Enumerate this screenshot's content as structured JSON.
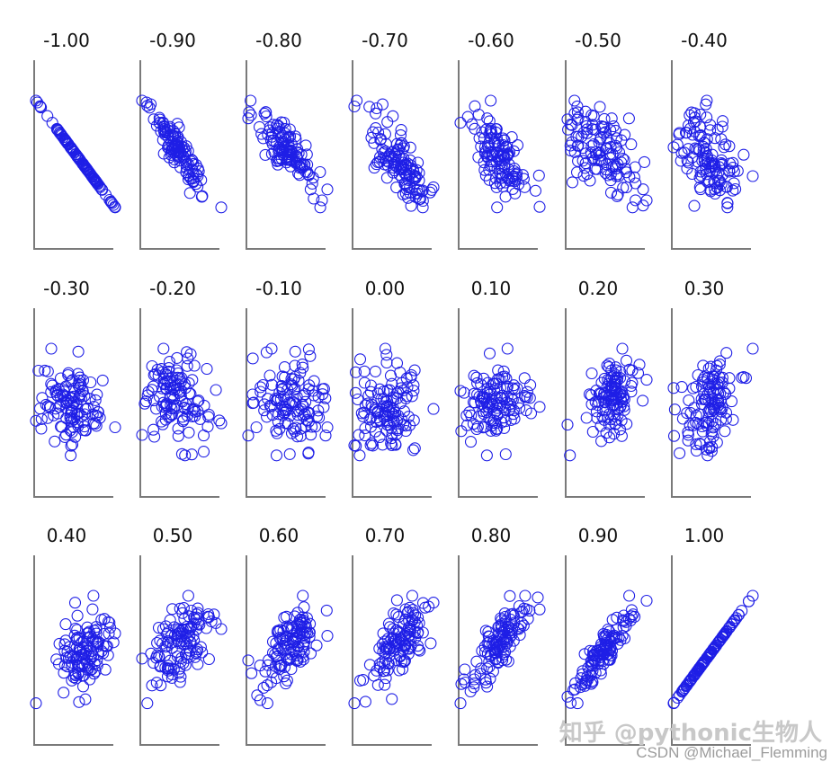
{
  "chart_data": {
    "type": "scatter",
    "layout": "grid",
    "rows": 3,
    "cols": 7,
    "points_per_panel": 120,
    "grid": false,
    "axes": "left-and-bottom lines, no ticks",
    "marker": "open circle",
    "marker_color": "#1f1fe6",
    "axis_color": "#7a7a7a",
    "panels": [
      {
        "label": "-1.00",
        "r": -1.0
      },
      {
        "label": "-0.90",
        "r": -0.9
      },
      {
        "label": "-0.80",
        "r": -0.8
      },
      {
        "label": "-0.70",
        "r": -0.7
      },
      {
        "label": "-0.60",
        "r": -0.6
      },
      {
        "label": "-0.50",
        "r": -0.5
      },
      {
        "label": "-0.40",
        "r": -0.4
      },
      {
        "label": "-0.30",
        "r": -0.3
      },
      {
        "label": "-0.20",
        "r": -0.2
      },
      {
        "label": "-0.10",
        "r": -0.1
      },
      {
        "label": "0.00",
        "r": 0.0
      },
      {
        "label": "0.10",
        "r": 0.1
      },
      {
        "label": "0.20",
        "r": 0.2
      },
      {
        "label": "0.30",
        "r": 0.3
      },
      {
        "label": "0.40",
        "r": 0.4
      },
      {
        "label": "0.50",
        "r": 0.5
      },
      {
        "label": "0.60",
        "r": 0.6
      },
      {
        "label": "0.70",
        "r": 0.7
      },
      {
        "label": "0.80",
        "r": 0.8
      },
      {
        "label": "0.90",
        "r": 0.9
      },
      {
        "label": "1.00",
        "r": 1.0
      }
    ]
  },
  "watermark": {
    "main": "知乎 @pythonic生物人",
    "sub": "CSDN @Michael_Flemming"
  }
}
